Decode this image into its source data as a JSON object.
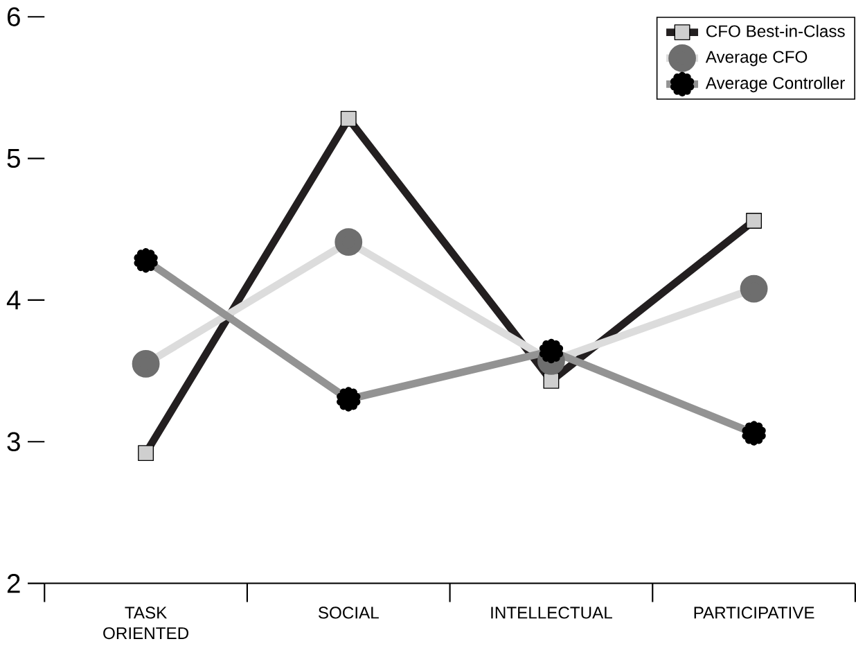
{
  "chart_data": {
    "type": "line",
    "categories": [
      "TASK ORIENTED",
      "SOCIAL",
      "INTELLECTUAL",
      "PARTICIPATIVE"
    ],
    "series": [
      {
        "name": "CFO Best-in-Class",
        "color": "#231f20",
        "marker": "square",
        "values": [
          2.92,
          5.28,
          3.43,
          4.56
        ]
      },
      {
        "name": "Average CFO",
        "color": "#dcdcdc",
        "marker": "circle",
        "values": [
          3.55,
          4.41,
          3.57,
          4.08
        ]
      },
      {
        "name": "Average Controller",
        "color": "#939393",
        "marker": "star",
        "values": [
          4.28,
          3.3,
          3.64,
          3.06
        ]
      }
    ],
    "ylim": [
      2,
      6
    ],
    "yticks": [
      2,
      3,
      4,
      5,
      6
    ],
    "legend": "top right",
    "grid": false,
    "line_style": "solid"
  }
}
